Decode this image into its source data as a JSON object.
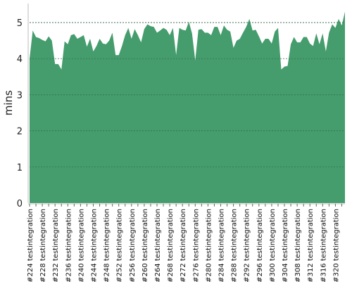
{
  "chart_data": {
    "type": "area",
    "title": "",
    "xlabel": "",
    "ylabel": "mins",
    "ylim": [
      0,
      5.5
    ],
    "yticks": [
      0,
      1,
      2,
      3,
      4,
      5
    ],
    "grid": "horizontal-dashed",
    "colors": {
      "area": "#459c6c",
      "grid": "#555555",
      "axis": "#bbbbbb"
    },
    "x_build_range": [
      224,
      323
    ],
    "x_tick_labels": [
      "#224 testintegration",
      "#228 testintegration",
      "#232 testintegration",
      "#236 testintegration",
      "#240 testintegration",
      "#244 testintegration",
      "#248 testintegration",
      "#252 testintegration",
      "#256 testintegration",
      "#260 testintegration",
      "#264 testintegration",
      "#268 testintegration",
      "#272 testintegration",
      "#276 testintegration",
      "#280 testintegration",
      "#284 testintegration",
      "#288 testintegration",
      "#292 testintegration",
      "#296 testintegration",
      "#300 testintegration",
      "#304 testintegration",
      "#308 testintegration",
      "#312 testintegration",
      "#316 testintegration",
      "#320 testintegration"
    ],
    "series": [
      {
        "values": [
          4.0,
          4.78,
          4.6,
          4.57,
          4.52,
          4.48,
          4.62,
          4.5,
          3.85,
          3.85,
          3.7,
          4.48,
          4.4,
          4.65,
          4.68,
          4.55,
          4.6,
          4.65,
          4.33,
          4.55,
          4.2,
          4.35,
          4.55,
          4.42,
          4.4,
          4.5,
          4.72,
          4.1,
          4.1,
          4.35,
          4.65,
          4.85,
          4.55,
          4.82,
          4.65,
          4.45,
          4.82,
          4.95,
          4.9,
          4.88,
          4.72,
          4.78,
          4.85,
          4.8,
          4.65,
          4.85,
          4.1,
          4.85,
          4.8,
          4.78,
          5.02,
          4.7,
          3.95,
          4.8,
          4.82,
          4.72,
          4.72,
          4.65,
          4.88,
          4.88,
          4.65,
          4.92,
          4.8,
          4.75,
          4.3,
          4.5,
          4.55,
          4.72,
          4.88,
          5.1,
          4.78,
          4.8,
          4.62,
          4.42,
          4.55,
          4.55,
          4.42,
          4.75,
          4.85,
          3.7,
          3.78,
          3.8,
          4.4,
          4.6,
          4.45,
          4.45,
          4.6,
          4.6,
          4.42,
          4.35,
          4.7,
          4.4,
          4.7,
          4.2,
          4.72,
          4.95,
          4.85,
          5.1,
          4.92,
          5.3
        ]
      }
    ]
  }
}
